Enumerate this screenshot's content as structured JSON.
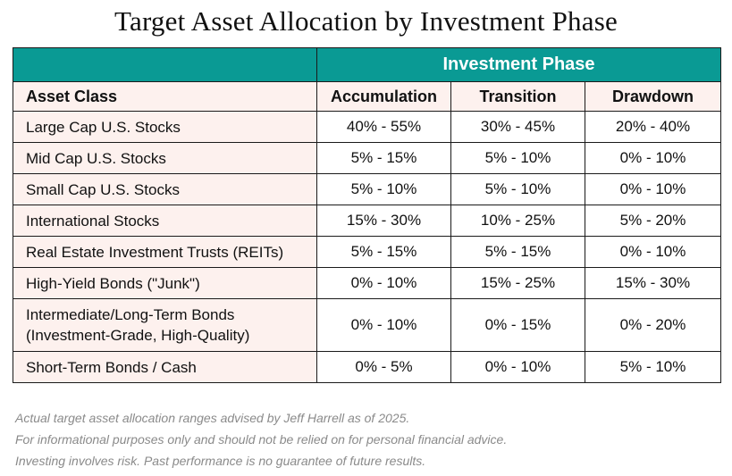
{
  "title": "Target Asset Allocation by Investment Phase",
  "table": {
    "group_header": "Investment Phase",
    "asset_class_header": "Asset Class",
    "phases": [
      "Accumulation",
      "Transition",
      "Drawdown"
    ],
    "rows": [
      {
        "asset": "Large Cap U.S. Stocks",
        "values": [
          "40% - 55%",
          "30% - 45%",
          "20% - 40%"
        ]
      },
      {
        "asset": "Mid Cap U.S. Stocks",
        "values": [
          "5% - 15%",
          "5% - 10%",
          "0% - 10%"
        ]
      },
      {
        "asset": "Small Cap U.S. Stocks",
        "values": [
          "5% - 10%",
          "5% - 10%",
          "0% - 10%"
        ]
      },
      {
        "asset": "International Stocks",
        "values": [
          "15% - 30%",
          "10% - 25%",
          "5% - 20%"
        ]
      },
      {
        "asset": "Real Estate Investment Trusts (REITs)",
        "values": [
          "5% - 15%",
          "5% - 15%",
          "0% - 10%"
        ]
      },
      {
        "asset": "High-Yield Bonds (\"Junk\")",
        "values": [
          "0% - 10%",
          "15% - 25%",
          "15% - 30%"
        ]
      },
      {
        "asset": "Intermediate/Long-Term Bonds",
        "asset_line2": "(Investment-Grade, High-Quality)",
        "values": [
          "0% - 10%",
          "0% - 15%",
          "0% - 20%"
        ]
      },
      {
        "asset": "Short-Term Bonds / Cash",
        "values": [
          "0% - 5%",
          "0% - 10%",
          "5% - 10%"
        ]
      }
    ]
  },
  "notes": [
    "Actual target asset allocation ranges advised by Jeff Harrell as of 2025.",
    "For informational purposes only and should not be relied on for personal financial advice.",
    "Investing involves risk. Past performance is no guarantee of future results."
  ],
  "colors": {
    "header_teal": "#0a9a94",
    "label_shade": "#fdf1ee",
    "note_gray": "#8a8a8a"
  }
}
